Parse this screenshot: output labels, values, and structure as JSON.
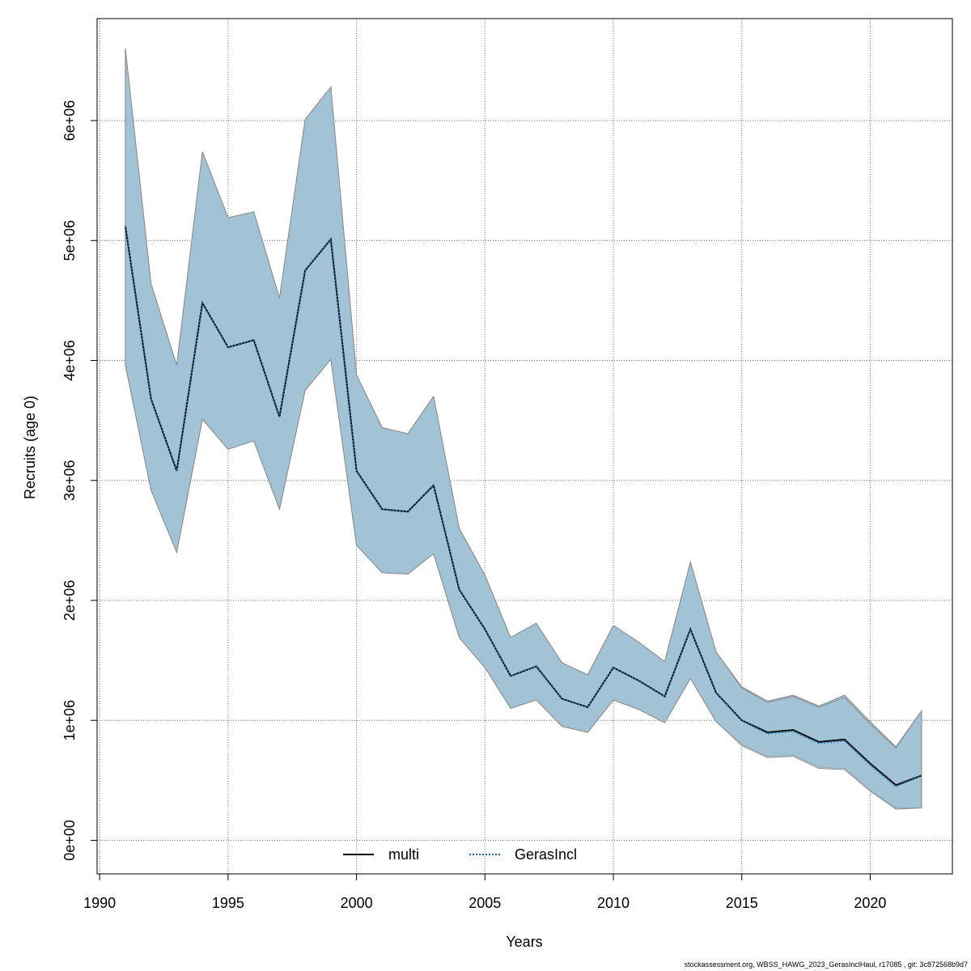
{
  "chart_data": {
    "type": "area",
    "xlabel": "Years",
    "ylabel": "Recruits (age 0)",
    "xlim": [
      1989.9,
      2023.2
    ],
    "ylim": [
      -280000,
      6850000
    ],
    "xticks": [
      1990,
      1995,
      2000,
      2005,
      2010,
      2015,
      2020
    ],
    "xtick_labels": [
      "1990",
      "1995",
      "2000",
      "2005",
      "2010",
      "2015",
      "2020"
    ],
    "yticks": [
      0,
      1000000,
      2000000,
      3000000,
      4000000,
      5000000,
      6000000
    ],
    "ytick_labels": [
      "0e+00",
      "1e+06",
      "2e+06",
      "3e+06",
      "4e+06",
      "5e+06",
      "6e+06"
    ],
    "grid": true,
    "legend_position": "bottom-center",
    "x": [
      1991,
      1992,
      1993,
      1994,
      1995,
      1996,
      1997,
      1998,
      1999,
      2000,
      2001,
      2002,
      2003,
      2004,
      2005,
      2006,
      2007,
      2008,
      2009,
      2010,
      2011,
      2012,
      2013,
      2014,
      2015,
      2016,
      2017,
      2018,
      2019,
      2020,
      2021,
      2022
    ],
    "series": [
      {
        "name": "multi",
        "line_style": "solid",
        "color": "#000000",
        "values": [
          5120000,
          3680000,
          3080000,
          4480000,
          4110000,
          4170000,
          3530000,
          4750000,
          5010000,
          3080000,
          2760000,
          2740000,
          2960000,
          2090000,
          1760000,
          1370000,
          1450000,
          1180000,
          1110000,
          1440000,
          1330000,
          1200000,
          1760000,
          1230000,
          1000000,
          900000,
          920000,
          820000,
          840000,
          640000,
          460000,
          540000
        ],
        "lower": [
          3960000,
          2920000,
          2400000,
          3510000,
          3260000,
          3330000,
          2760000,
          3750000,
          4010000,
          2460000,
          2230000,
          2220000,
          2390000,
          1690000,
          1440000,
          1100000,
          1170000,
          950000,
          900000,
          1170000,
          1090000,
          980000,
          1350000,
          990000,
          800000,
          700000,
          710000,
          610000,
          600000,
          420000,
          270000,
          270000
        ],
        "upper": [
          6600000,
          4640000,
          3960000,
          5740000,
          5190000,
          5240000,
          4520000,
          6010000,
          6280000,
          3880000,
          3440000,
          3390000,
          3700000,
          2600000,
          2210000,
          1690000,
          1810000,
          1480000,
          1380000,
          1790000,
          1650000,
          1490000,
          2320000,
          1570000,
          1280000,
          1160000,
          1210000,
          1120000,
          1210000,
          990000,
          780000,
          1080000
        ]
      },
      {
        "name": "GerasIncl",
        "line_style": "dotted",
        "color": "#1f6fa8",
        "values": [
          5120000,
          3680000,
          3080000,
          4480000,
          4110000,
          4170000,
          3530000,
          4750000,
          5010000,
          3080000,
          2760000,
          2740000,
          2960000,
          2090000,
          1760000,
          1370000,
          1450000,
          1180000,
          1110000,
          1440000,
          1330000,
          1200000,
          1760000,
          1230000,
          1000000,
          890000,
          910000,
          810000,
          830000,
          630000,
          450000,
          540000
        ],
        "lower": [
          3960000,
          2920000,
          2400000,
          3510000,
          3260000,
          3330000,
          2760000,
          3750000,
          4010000,
          2460000,
          2230000,
          2220000,
          2390000,
          1690000,
          1440000,
          1100000,
          1170000,
          950000,
          900000,
          1170000,
          1090000,
          980000,
          1350000,
          990000,
          790000,
          690000,
          700000,
          600000,
          590000,
          410000,
          260000,
          270000
        ],
        "upper": [
          6600000,
          4640000,
          3960000,
          5740000,
          5190000,
          5240000,
          4520000,
          6010000,
          6280000,
          3880000,
          3440000,
          3390000,
          3700000,
          2600000,
          2210000,
          1690000,
          1810000,
          1480000,
          1380000,
          1790000,
          1650000,
          1490000,
          2320000,
          1570000,
          1270000,
          1150000,
          1200000,
          1110000,
          1190000,
          970000,
          770000,
          1080000
        ]
      }
    ]
  },
  "colors": {
    "band_fill": "#a3c3d5",
    "band_edge": "#8c8c8c",
    "grid": "#6f6f6f"
  },
  "footer": {
    "text": "stockassessment.org, WBSS_HAWG_2023_GerasInclHaul, r17085 , git: 3c872568b9d7"
  }
}
